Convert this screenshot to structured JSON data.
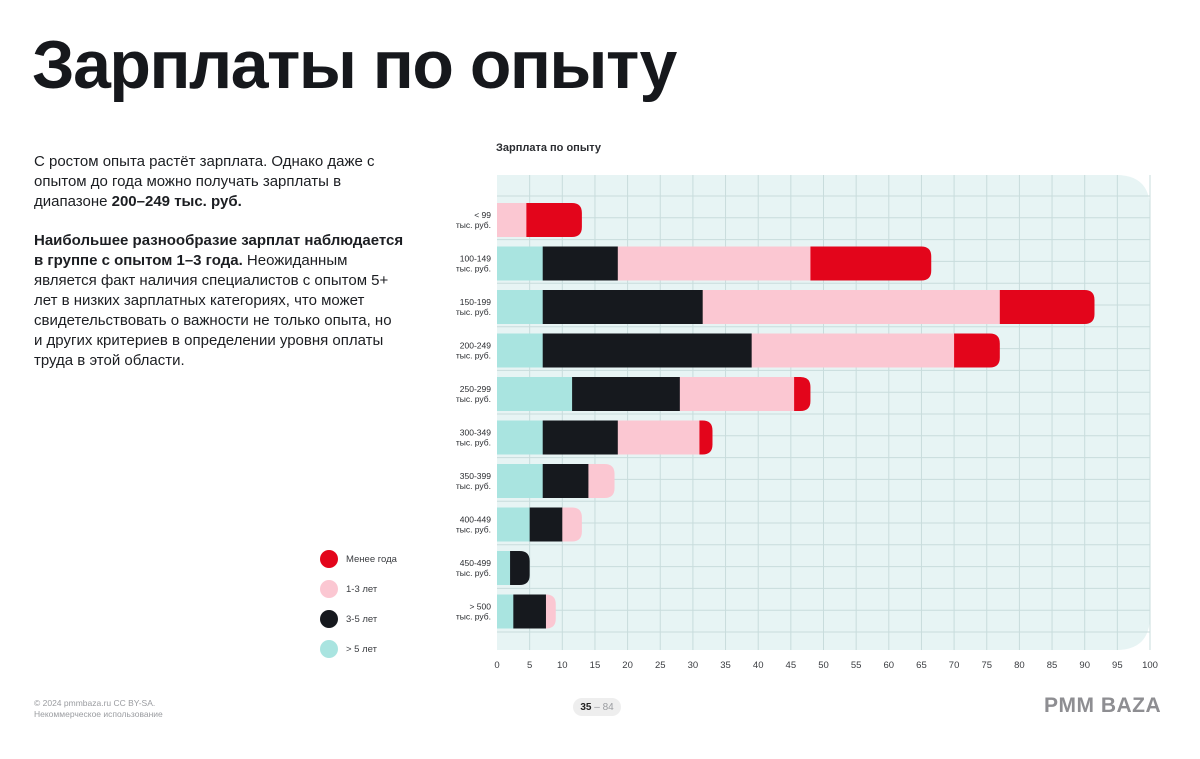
{
  "page": {
    "title": "Зарплаты по опыту",
    "paragraph1": {
      "pre": "С ростом опыта растёт зарплата. Однако даже с опытом до года можно получать зарплаты в диапазоне ",
      "bold": "200–249 тыс. руб."
    },
    "paragraph2": {
      "bold": "Наибольшее разнообразие зарплат наблюдается в группе с опытом 1–3 года.",
      "rest": " Неожиданным является факт наличия специалистов с опытом 5+ лет в низких зарплатных категориях, что может свидетельствовать о важности не только опыта, но и других критериев в определении уровня оплаты труда в этой области."
    }
  },
  "footer": {
    "copyright": "© 2024 pmmbaza.ru CC BY-SA.",
    "license": "Некоммерческое использование",
    "page_current": "35",
    "page_separator": "–",
    "page_total": "84",
    "brand": "PMM BAZA"
  },
  "colors": {
    "less_than_year": "#e3051b",
    "one_to_three": "#fbc7d2",
    "three_to_five": "#16191e",
    "five_plus": "#a9e4e0",
    "plot_bg": "#e7f4f4",
    "grid": "#c8dcdc"
  },
  "chart_data": {
    "type": "bar",
    "orientation": "horizontal",
    "stacked": true,
    "title": "Зарплата по опыту",
    "categories": [
      [
        "< 99",
        "тыс. руб."
      ],
      [
        "100-149",
        "тыс. руб."
      ],
      [
        "150-199",
        "тыс. руб."
      ],
      [
        "200-249",
        "тыс. руб."
      ],
      [
        "250-299",
        "тыс. руб."
      ],
      [
        "300-349",
        "тыс. руб."
      ],
      [
        "350-399",
        "тыс. руб."
      ],
      [
        "400-449",
        "тыс. руб."
      ],
      [
        "450-499",
        "тыс. руб."
      ],
      [
        "> 500",
        "тыс. руб."
      ]
    ],
    "series": [
      {
        "name": "> 5 лет",
        "color_key": "five_plus",
        "values": [
          0,
          7,
          7,
          7,
          11.5,
          7,
          7,
          5,
          2,
          2.5
        ]
      },
      {
        "name": "3-5 лет",
        "color_key": "three_to_five",
        "values": [
          0,
          11.5,
          24.5,
          32,
          16.5,
          11.5,
          7,
          5,
          3,
          5
        ]
      },
      {
        "name": "1-3 лет",
        "color_key": "one_to_three",
        "values": [
          4.5,
          29.5,
          45.5,
          31,
          17.5,
          12.5,
          4,
          3,
          0,
          1.5
        ]
      },
      {
        "name": "Менее года",
        "color_key": "less_than_year",
        "values": [
          8.5,
          18.5,
          14.5,
          7,
          2.5,
          2,
          0,
          0,
          0,
          0
        ]
      }
    ],
    "legend_order": [
      "Менее года",
      "1-3 лет",
      "3-5 лет",
      "> 5 лет"
    ],
    "xlim": [
      0,
      100
    ],
    "xticks": [
      0,
      5,
      10,
      15,
      20,
      25,
      30,
      35,
      40,
      45,
      50,
      55,
      60,
      65,
      70,
      75,
      80,
      85,
      90,
      95,
      100
    ],
    "grid": true,
    "legend_position": "left-bottom"
  }
}
